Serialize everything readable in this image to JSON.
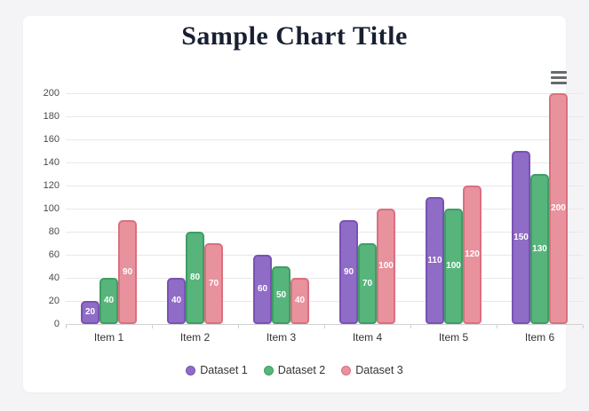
{
  "page": {
    "background_color": "#f4f4f6",
    "card_background_color": "#ffffff"
  },
  "header": {
    "title": "Sample Chart Title",
    "title_color": "#182031",
    "menu_icon": "hamburger-menu-icon"
  },
  "chart_data": {
    "type": "bar",
    "title": "Sample Chart Title",
    "categories": [
      "Item 1",
      "Item 2",
      "Item 3",
      "Item 4",
      "Item 5",
      "Item 6"
    ],
    "series": [
      {
        "name": "Dataset 1",
        "color": "#8f6cc6",
        "border_color": "#7a52b3",
        "values": [
          20,
          40,
          60,
          90,
          110,
          150
        ]
      },
      {
        "name": "Dataset 2",
        "color": "#57b57c",
        "border_color": "#3d9e66",
        "values": [
          40,
          80,
          50,
          70,
          100,
          130
        ]
      },
      {
        "name": "Dataset 3",
        "color": "#e8929e",
        "border_color": "#db707f",
        "values": [
          90,
          70,
          40,
          100,
          120,
          200
        ]
      }
    ],
    "xlabel": "",
    "ylabel": "",
    "ylim": [
      0,
      200
    ],
    "ytick_step": 20,
    "yticks": [
      0,
      20,
      40,
      60,
      80,
      100,
      120,
      140,
      160,
      180,
      200
    ],
    "grid": "horizontal",
    "gridline_color": "#e8e8ea",
    "legend_position": "bottom",
    "value_labels": "inside-center-white"
  }
}
